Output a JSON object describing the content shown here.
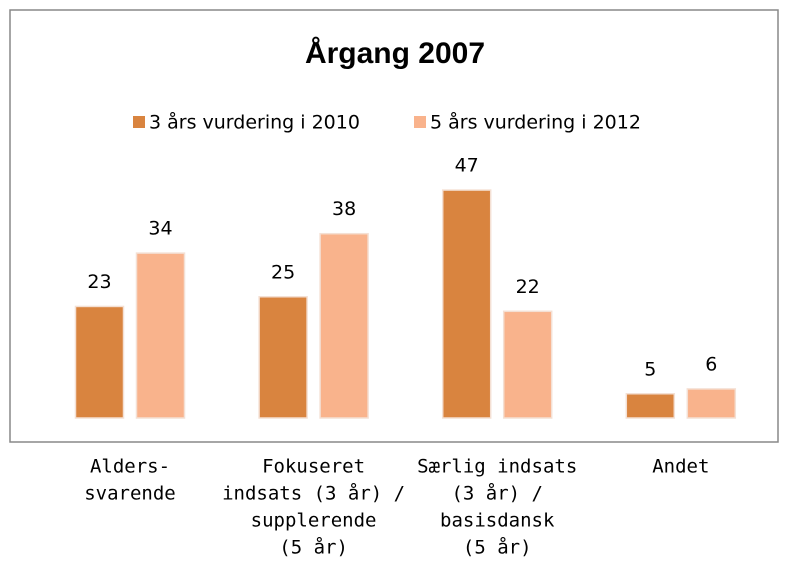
{
  "chart_data": {
    "type": "bar",
    "title": "Årgang 2007",
    "categories": [
      [
        "Alders-",
        "svarende"
      ],
      [
        "Fokuseret",
        "indsats (3 år) /",
        "supplerende",
        "(5 år)"
      ],
      [
        "Særlig indsats",
        "(3 år) /",
        "basisdansk",
        "(5 år)"
      ],
      [
        "Andet"
      ]
    ],
    "series": [
      {
        "name": "3 års vurdering i 2010",
        "color": "#d9843f",
        "values": [
          23,
          25,
          47,
          5
        ]
      },
      {
        "name": "5 års vurdering i 2012",
        "color": "#f9b38c",
        "values": [
          34,
          38,
          22,
          6
        ]
      }
    ],
    "legend": "top"
  }
}
